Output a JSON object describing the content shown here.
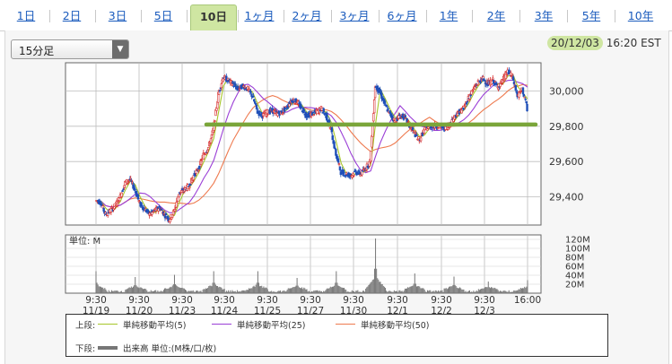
{
  "tabs": [
    {
      "label": "1日",
      "active": false
    },
    {
      "label": "2日",
      "active": false
    },
    {
      "label": "3日",
      "active": false
    },
    {
      "label": "5日",
      "active": false
    },
    {
      "label": "10日",
      "active": true
    },
    {
      "label": "1ヶ月",
      "active": false
    },
    {
      "label": "2ヶ月",
      "active": false
    },
    {
      "label": "3ヶ月",
      "active": false
    },
    {
      "label": "6ヶ月",
      "active": false
    },
    {
      "label": "1年",
      "active": false
    },
    {
      "label": "2年",
      "active": false
    },
    {
      "label": "3年",
      "active": false
    },
    {
      "label": "5年",
      "active": false
    },
    {
      "label": "10年",
      "active": false
    }
  ],
  "interval_select": {
    "value": "15分足"
  },
  "timestamp": {
    "date": "20/12/03",
    "time": "16:20 EST"
  },
  "legend": {
    "upper_label": "上段:",
    "lower_label": "下段:",
    "ma5": "単純移動平均(5)",
    "ma25": "単純移動平均(25)",
    "ma50": "単純移動平均(50)",
    "volume": "出来高 単位:(M株/口/枚)"
  },
  "colors": {
    "ma5": "#a6c62a",
    "ma25": "#9b3fd6",
    "ma50": "#ee7a4f",
    "candle_up": "#d62b2b",
    "candle_down": "#1f4fb8",
    "hline": "#7aa53a",
    "volume": "#777777"
  },
  "chart_data": [
    {
      "type": "candlestick",
      "title": "",
      "y_ticks": [
        29400,
        29600,
        29800,
        30000
      ],
      "ylim": [
        29240,
        30160
      ],
      "x_tick_labels": [
        {
          "time": "9:30",
          "date": "11/19"
        },
        {
          "time": "9:30",
          "date": "11/20"
        },
        {
          "time": "9:30",
          "date": "11/23"
        },
        {
          "time": "9:30",
          "date": "11/24"
        },
        {
          "time": "9:30",
          "date": "11/25"
        },
        {
          "time": "9:30",
          "date": "11/27"
        },
        {
          "time": "9:30",
          "date": "11/30"
        },
        {
          "time": "9:30",
          "date": "12/1"
        },
        {
          "time": "9:30",
          "date": "12/2"
        },
        {
          "time": "9:30",
          "date": "12/3"
        },
        {
          "time": "16:00",
          "date": ""
        }
      ],
      "horizontal_line": 29810,
      "price_path": [
        [
          0,
          29380
        ],
        [
          1,
          29370
        ],
        [
          2,
          29300
        ],
        [
          3,
          29320
        ],
        [
          4,
          29350
        ],
        [
          5,
          29400
        ],
        [
          6,
          29480
        ],
        [
          7,
          29500
        ],
        [
          8,
          29440
        ],
        [
          9,
          29360
        ],
        [
          10,
          29330
        ],
        [
          11,
          29300
        ],
        [
          12,
          29320
        ],
        [
          13,
          29340
        ],
        [
          14,
          29300
        ],
        [
          15,
          29270
        ],
        [
          16,
          29320
        ],
        [
          17,
          29420
        ],
        [
          18,
          29440
        ],
        [
          19,
          29460
        ],
        [
          20,
          29520
        ],
        [
          21,
          29560
        ],
        [
          22,
          29640
        ],
        [
          23,
          29680
        ],
        [
          24,
          29780
        ],
        [
          25,
          29980
        ],
        [
          26,
          30080
        ],
        [
          27,
          30060
        ],
        [
          28,
          30040
        ],
        [
          29,
          30010
        ],
        [
          30,
          30030
        ],
        [
          31,
          30010
        ],
        [
          32,
          29970
        ],
        [
          33,
          29880
        ],
        [
          34,
          29860
        ],
        [
          35,
          29880
        ],
        [
          36,
          29890
        ],
        [
          37,
          29870
        ],
        [
          38,
          29880
        ],
        [
          39,
          29910
        ],
        [
          40,
          29950
        ],
        [
          41,
          29940
        ],
        [
          42,
          29900
        ],
        [
          43,
          29860
        ],
        [
          44,
          29870
        ],
        [
          45,
          29880
        ],
        [
          46,
          29900
        ],
        [
          47,
          29860
        ],
        [
          48,
          29780
        ],
        [
          49,
          29640
        ],
        [
          50,
          29540
        ],
        [
          51,
          29530
        ],
        [
          52,
          29520
        ],
        [
          53,
          29540
        ],
        [
          54,
          29530
        ],
        [
          55,
          29560
        ],
        [
          56,
          29600
        ],
        [
          57,
          30030
        ],
        [
          58,
          29990
        ],
        [
          59,
          29920
        ],
        [
          60,
          29870
        ],
        [
          61,
          29830
        ],
        [
          62,
          29860
        ],
        [
          63,
          29850
        ],
        [
          64,
          29800
        ],
        [
          65,
          29760
        ],
        [
          66,
          29720
        ],
        [
          67,
          29780
        ],
        [
          68,
          29800
        ],
        [
          69,
          29800
        ],
        [
          70,
          29800
        ],
        [
          71,
          29790
        ],
        [
          72,
          29800
        ],
        [
          73,
          29850
        ],
        [
          74,
          29880
        ],
        [
          75,
          29900
        ],
        [
          76,
          29960
        ],
        [
          77,
          30010
        ],
        [
          78,
          30050
        ],
        [
          79,
          30070
        ],
        [
          80,
          30040
        ],
        [
          81,
          30060
        ],
        [
          82,
          30020
        ],
        [
          83,
          30060
        ],
        [
          84,
          30110
        ],
        [
          85,
          30080
        ],
        [
          86,
          29970
        ],
        [
          87,
          30010
        ],
        [
          88,
          29900
        ]
      ],
      "volume_axis": {
        "unit_label": "単位: M",
        "ticks": [
          20,
          40,
          60,
          80,
          100,
          120
        ],
        "tick_suffix": "M",
        "ylim": [
          0,
          130
        ]
      },
      "volume_spikes": [
        {
          "x": 0,
          "value": 45
        },
        {
          "x": 8,
          "value": 32
        },
        {
          "x": 16,
          "value": 37
        },
        {
          "x": 24,
          "value": 45
        },
        {
          "x": 33,
          "value": 45
        },
        {
          "x": 41,
          "value": 30
        },
        {
          "x": 49,
          "value": 45
        },
        {
          "x": 57,
          "value": 118
        },
        {
          "x": 65,
          "value": 40
        },
        {
          "x": 73,
          "value": 33
        },
        {
          "x": 80,
          "value": 22
        },
        {
          "x": 88,
          "value": 25
        }
      ]
    }
  ]
}
